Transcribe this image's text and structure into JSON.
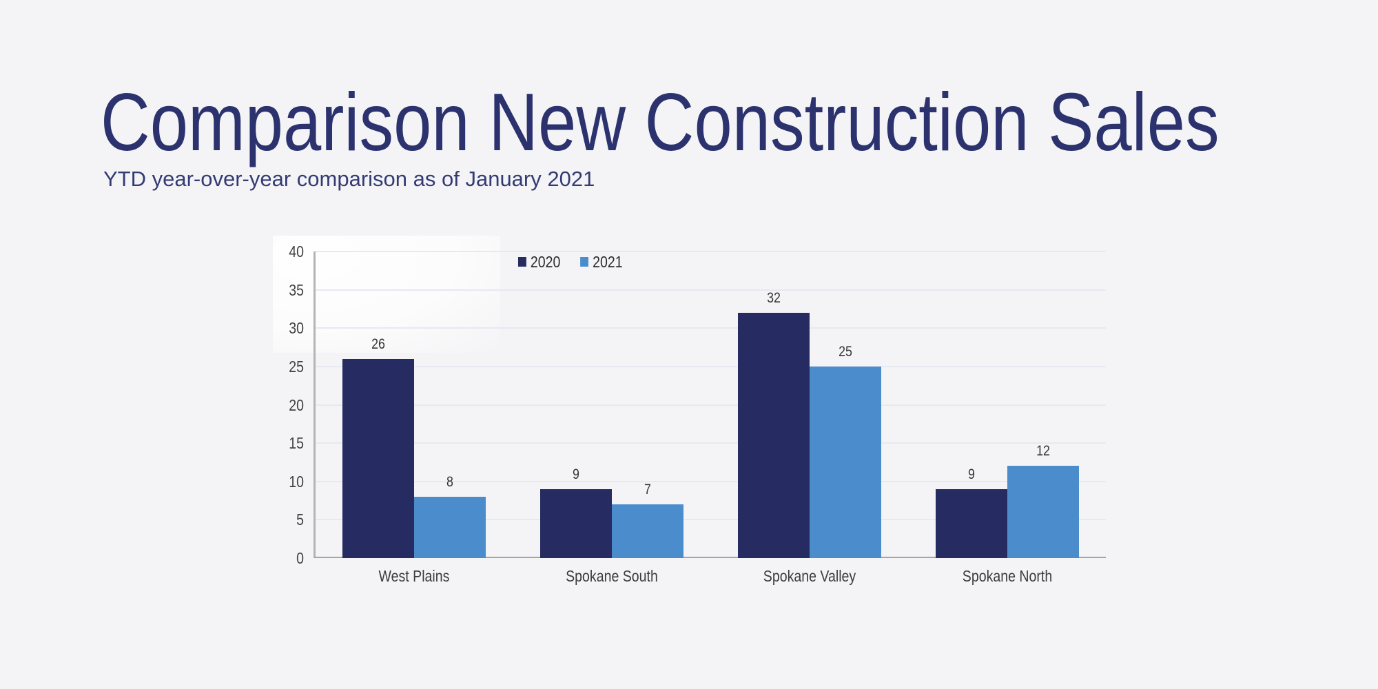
{
  "page": {
    "title": "Comparison New Construction Sales",
    "subtitle": "YTD year-over-year comparison as of January 2021",
    "background_color": "#f4f4f6",
    "title_color": "#2b326e"
  },
  "chart_data": {
    "type": "bar",
    "title": "Comparison New Construction Sales",
    "subtitle": "YTD year-over-year comparison as of January 2021",
    "categories": [
      "West Plains",
      "Spokane South",
      "Spokane Valley",
      "Spokane North"
    ],
    "series": [
      {
        "name": "2020",
        "color": "#262b62",
        "values": [
          26,
          9,
          32,
          9
        ]
      },
      {
        "name": "2021",
        "color": "#4b8dcc",
        "values": [
          8,
          7,
          25,
          12
        ]
      }
    ],
    "xlabel": "",
    "ylabel": "",
    "ylim": [
      0,
      40
    ],
    "yticks": [
      0,
      5,
      10,
      15,
      20,
      25,
      30,
      35,
      40
    ],
    "grid": true,
    "data_labels": true,
    "legend_position": "top-center",
    "style": {
      "gridline_color": "#e6e9f2",
      "axis_line_color": "#b4b4b6",
      "baseline_color": "#a5a5a8",
      "tick_label_color": "#414143",
      "category_label_color": "#3c3c3e",
      "value_label_color": "#353537",
      "legend_text_color": "#2b2b2d"
    }
  }
}
